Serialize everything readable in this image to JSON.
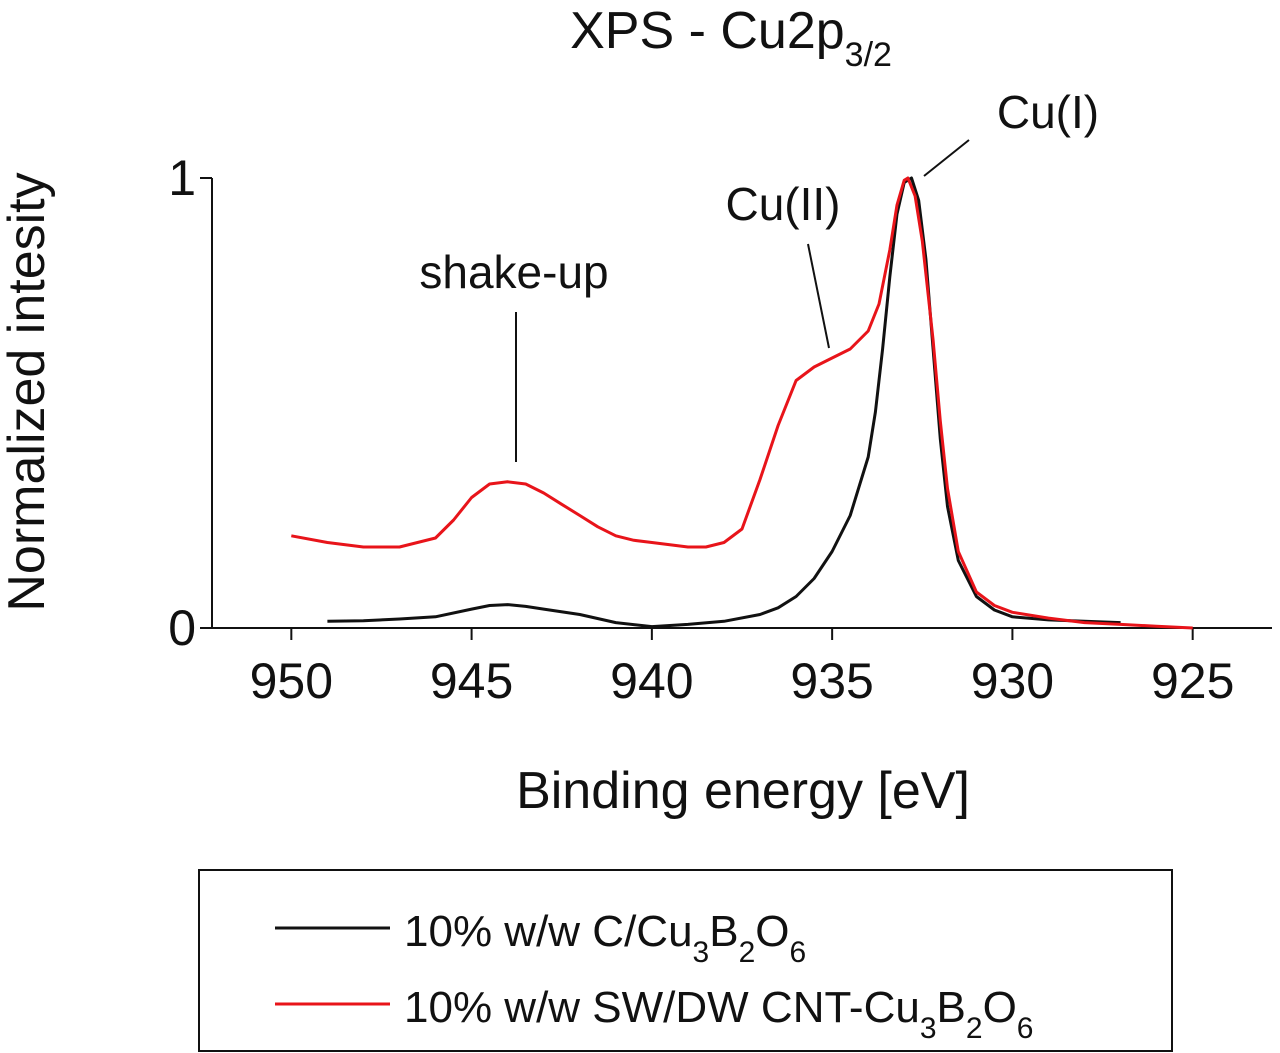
{
  "chart_data": {
    "type": "line",
    "title": {
      "main": "XPS - Cu2p",
      "subscript": "3/2"
    },
    "xlabel": "Binding energy [eV]",
    "ylabel": "Normalized intesity",
    "xlim": [
      952.2,
      922.8
    ],
    "ylim": [
      0,
      1
    ],
    "x_ticks": [
      950,
      945,
      940,
      935,
      930,
      925
    ],
    "x_tick_labels": [
      "950",
      "945",
      "940",
      "935",
      "930",
      "925"
    ],
    "y_ticks": [
      0,
      1
    ],
    "y_tick_labels": [
      "0",
      "1"
    ],
    "grid": false,
    "legend_position": "bottom",
    "series": [
      {
        "name": "10% w/w C/Cu3B2O6",
        "label_parts": [
          {
            "t": "10% w/w C/Cu",
            "sub": false
          },
          {
            "t": "3",
            "sub": true
          },
          {
            "t": "B",
            "sub": false
          },
          {
            "t": "2",
            "sub": true
          },
          {
            "t": "O",
            "sub": false
          },
          {
            "t": "6",
            "sub": true
          }
        ],
        "color": "#111111",
        "x": [
          949.0,
          948.0,
          947.0,
          946.0,
          945.0,
          944.5,
          944.0,
          943.5,
          943.0,
          942.0,
          941.0,
          940.0,
          939.0,
          938.0,
          937.0,
          936.5,
          936.0,
          935.5,
          935.0,
          934.5,
          934.0,
          933.8,
          933.6,
          933.4,
          933.2,
          933.0,
          932.8,
          932.6,
          932.4,
          932.2,
          932.0,
          931.8,
          931.5,
          931.0,
          930.5,
          930.0,
          929.0,
          928.0,
          927.0
        ],
        "y": [
          0.015,
          0.016,
          0.02,
          0.025,
          0.042,
          0.05,
          0.052,
          0.048,
          0.042,
          0.03,
          0.012,
          0.003,
          0.008,
          0.015,
          0.03,
          0.045,
          0.07,
          0.11,
          0.17,
          0.25,
          0.38,
          0.48,
          0.62,
          0.78,
          0.92,
          0.99,
          1.0,
          0.95,
          0.82,
          0.62,
          0.42,
          0.27,
          0.15,
          0.07,
          0.04,
          0.025,
          0.018,
          0.015,
          0.012
        ]
      },
      {
        "name": "10% w/w SW/DW CNT-Cu3B2O6",
        "label_parts": [
          {
            "t": "10% w/w SW/DW CNT-Cu",
            "sub": false
          },
          {
            "t": "3",
            "sub": true
          },
          {
            "t": "B",
            "sub": false
          },
          {
            "t": "2",
            "sub": true
          },
          {
            "t": "O",
            "sub": false
          },
          {
            "t": "6",
            "sub": true
          }
        ],
        "color": "#e8141a",
        "x": [
          950.0,
          949.0,
          948.0,
          947.0,
          946.0,
          945.5,
          945.0,
          944.5,
          944.0,
          943.5,
          943.0,
          942.5,
          942.0,
          941.5,
          941.0,
          940.5,
          940.0,
          939.5,
          939.0,
          938.5,
          938.0,
          937.5,
          937.0,
          936.5,
          936.0,
          935.5,
          935.0,
          934.5,
          934.0,
          933.7,
          933.4,
          933.2,
          933.0,
          932.9,
          932.7,
          932.5,
          932.2,
          932.0,
          931.8,
          931.5,
          931.0,
          930.5,
          930.0,
          929.0,
          928.0,
          927.0,
          926.0,
          925.0
        ],
        "y": [
          0.205,
          0.19,
          0.18,
          0.18,
          0.2,
          0.24,
          0.29,
          0.32,
          0.325,
          0.32,
          0.3,
          0.275,
          0.25,
          0.225,
          0.205,
          0.195,
          0.19,
          0.185,
          0.18,
          0.18,
          0.19,
          0.22,
          0.33,
          0.45,
          0.55,
          0.58,
          0.6,
          0.62,
          0.66,
          0.72,
          0.84,
          0.94,
          0.995,
          1.0,
          0.96,
          0.86,
          0.64,
          0.46,
          0.31,
          0.17,
          0.08,
          0.05,
          0.035,
          0.022,
          0.012,
          0.008,
          0.004,
          0.0
        ]
      }
    ],
    "annotations": [
      {
        "text": "shake-up",
        "x": 944.0,
        "y": 0.365
      },
      {
        "text": "Cu(II)",
        "x": 935.2,
        "y": 0.62
      },
      {
        "text": "Cu(I)",
        "x": 932.7,
        "y": 1.0
      }
    ]
  }
}
